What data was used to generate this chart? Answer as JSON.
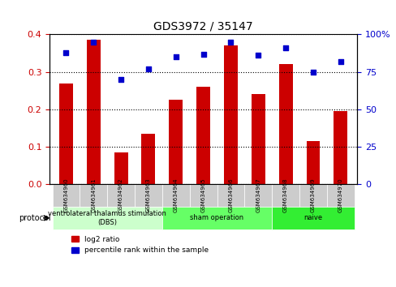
{
  "title": "GDS3972 / 35147",
  "samples": [
    "GSM634960",
    "GSM634961",
    "GSM634962",
    "GSM634963",
    "GSM634964",
    "GSM634965",
    "GSM634966",
    "GSM634967",
    "GSM634968",
    "GSM634969",
    "GSM634970"
  ],
  "log2_ratio": [
    0.27,
    0.385,
    0.085,
    0.135,
    0.225,
    0.26,
    0.37,
    0.24,
    0.32,
    0.115,
    0.195
  ],
  "percentile_rank": [
    88,
    95,
    70,
    77,
    85,
    87,
    95,
    86,
    91,
    75,
    82
  ],
  "bar_color": "#cc0000",
  "dot_color": "#0000cc",
  "ylim_left": [
    0,
    0.4
  ],
  "ylim_right": [
    0,
    100
  ],
  "yticks_left": [
    0,
    0.1,
    0.2,
    0.3,
    0.4
  ],
  "yticks_right": [
    0,
    25,
    50,
    75,
    100
  ],
  "protocol_groups": [
    {
      "label": "ventrolateral thalamus stimulation\n(DBS)",
      "start": 0,
      "end": 3,
      "color": "#ccffcc"
    },
    {
      "label": "sham operation",
      "start": 4,
      "end": 7,
      "color": "#66ff66"
    },
    {
      "label": "naive",
      "start": 8,
      "end": 10,
      "color": "#33ee33"
    }
  ],
  "protocol_label": "protocol",
  "legend_bar_label": "log2 ratio",
  "legend_dot_label": "percentile rank within the sample",
  "grid_color": "#000000",
  "background_color": "#ffffff",
  "plot_bg_color": "#ffffff"
}
